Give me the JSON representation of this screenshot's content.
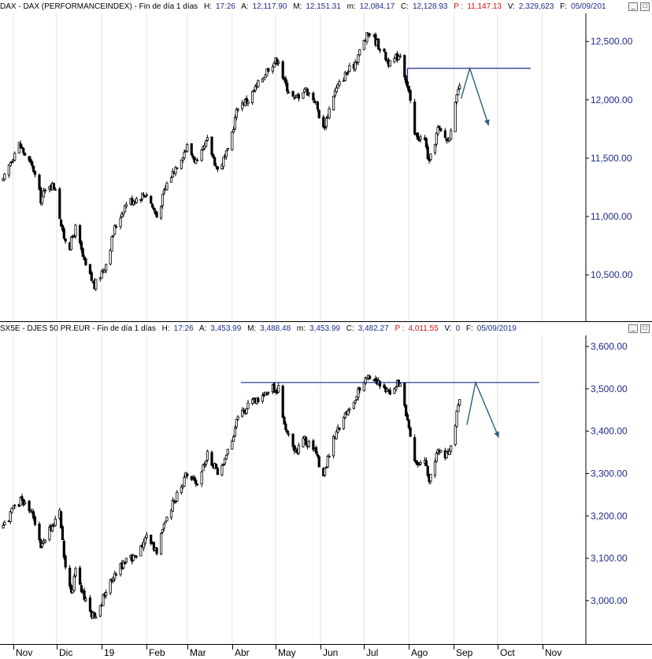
{
  "top_header": {
    "title": "DAX - DAX (PERFORMANCEINDEX) - Fin de día 1 días",
    "h_label": "H:",
    "h": "17:26",
    "a_label": "A:",
    "a": "12,117.90",
    "m_label": "M:",
    "m": "12,151.31",
    "mn_label": "m:",
    "mn": "12,084.17",
    "c_label": "C:",
    "c": "12,128.93",
    "p_label": "P :",
    "p": "11,147.13",
    "v_label": "V:",
    "v": "2,329,623",
    "f_label": "F:",
    "f": "05/09/201"
  },
  "bottom_header": {
    "title": "SX5E - DJES 50 PR.EUR - Fin de día 1 días",
    "h_label": "H:",
    "h": "17:26",
    "a_label": "A:",
    "a": "3,453.99",
    "m_label": "M:",
    "m": "3,488.48",
    "mn_label": "m:",
    "mn": "3,453.99",
    "c_label": "C:",
    "c": "3,482.27",
    "p_label": "P :",
    "p": "4,011.55",
    "v_label": "V:",
    "v": "0",
    "f_label": "F:",
    "f": "05/09/2019"
  },
  "buttons": {
    "minimize": "_",
    "maximize": "□"
  },
  "colors": {
    "axis_text": "#1f2a8a",
    "candles": "#000000",
    "lines": "#1f2a8a",
    "arrow": "#2b5f7a",
    "p_value": "#d01010"
  },
  "x_axis": [
    "Nov",
    "Dic",
    "19",
    "Feb",
    "Mar",
    "Abr",
    "May",
    "Jun",
    "Jul",
    "Ago",
    "Sep",
    "Oct",
    "Nov"
  ],
  "chart_data": [
    {
      "type": "candlestick",
      "name": "DAX - DAX (PERFORMANCEINDEX)",
      "y_ticks": [
        "12,500.00",
        "12,000.00",
        "11,500.00",
        "11,000.00",
        "10,500.00"
      ],
      "y_tick_values": [
        12500,
        12000,
        11500,
        11000,
        10500
      ],
      "ylim": [
        10130,
        12700
      ],
      "x_range": [
        "2018-10-25",
        "2019-11-30"
      ],
      "anchors": [
        [
          "2018-10-25",
          11300
        ],
        [
          "2018-10-31",
          11500
        ],
        [
          "2018-11-05",
          11620
        ],
        [
          "2018-11-15",
          11400
        ],
        [
          "2018-11-20",
          11150
        ],
        [
          "2018-11-26",
          11280
        ],
        [
          "2018-11-30",
          11250
        ],
        [
          "2018-12-05",
          10850
        ],
        [
          "2018-12-10",
          10750
        ],
        [
          "2018-12-14",
          10900
        ],
        [
          "2018-12-20",
          10600
        ],
        [
          "2018-12-27",
          10400
        ],
        [
          "2019-01-04",
          10600
        ],
        [
          "2019-01-10",
          10900
        ],
        [
          "2019-01-18",
          11120
        ],
        [
          "2019-01-24",
          11150
        ],
        [
          "2019-02-01",
          11200
        ],
        [
          "2019-02-08",
          11000
        ],
        [
          "2019-02-15",
          11280
        ],
        [
          "2019-02-22",
          11450
        ],
        [
          "2019-03-01",
          11600
        ],
        [
          "2019-03-08",
          11450
        ],
        [
          "2019-03-15",
          11650
        ],
        [
          "2019-03-22",
          11400
        ],
        [
          "2019-03-29",
          11550
        ],
        [
          "2019-04-05",
          11950
        ],
        [
          "2019-04-12",
          12000
        ],
        [
          "2019-04-20",
          12150
        ],
        [
          "2019-04-27",
          12300
        ],
        [
          "2019-05-03",
          12350
        ],
        [
          "2019-05-07",
          12150
        ],
        [
          "2019-05-14",
          12000
        ],
        [
          "2019-05-21",
          12100
        ],
        [
          "2019-05-28",
          12000
        ],
        [
          "2019-06-03",
          11750
        ],
        [
          "2019-06-10",
          12050
        ],
        [
          "2019-06-17",
          12200
        ],
        [
          "2019-06-24",
          12300
        ],
        [
          "2019-07-01",
          12500
        ],
        [
          "2019-07-05",
          12580
        ],
        [
          "2019-07-12",
          12450
        ],
        [
          "2019-07-19",
          12300
        ],
        [
          "2019-07-26",
          12400
        ],
        [
          "2019-08-01",
          12050
        ],
        [
          "2019-08-05",
          11700
        ],
        [
          "2019-08-12",
          11650
        ],
        [
          "2019-08-15",
          11450
        ],
        [
          "2019-08-21",
          11750
        ],
        [
          "2019-08-28",
          11650
        ],
        [
          "2019-09-02",
          11950
        ],
        [
          "2019-09-05",
          12126
        ]
      ]
    },
    {
      "type": "candlestick",
      "name": "SX5E - DJES 50 PR.EUR",
      "y_ticks": [
        "3,600.00",
        "3,500.00",
        "3,400.00",
        "3,300.00",
        "3,200.00",
        "3,100.00",
        "3,000.00"
      ],
      "y_tick_values": [
        3600,
        3500,
        3400,
        3300,
        3200,
        3100,
        3000
      ],
      "ylim": [
        2905,
        3615
      ],
      "x_range": [
        "2018-10-25",
        "2019-11-30"
      ],
      "anchors": [
        [
          "2018-10-25",
          3170
        ],
        [
          "2018-10-31",
          3210
        ],
        [
          "2018-11-07",
          3240
        ],
        [
          "2018-11-15",
          3200
        ],
        [
          "2018-11-20",
          3120
        ],
        [
          "2018-11-28",
          3180
        ],
        [
          "2018-12-03",
          3210
        ],
        [
          "2018-12-07",
          3070
        ],
        [
          "2018-12-12",
          3020
        ],
        [
          "2018-12-14",
          3080
        ],
        [
          "2018-12-20",
          3000
        ],
        [
          "2018-12-27",
          2960
        ],
        [
          "2019-01-04",
          3020
        ],
        [
          "2019-01-10",
          3060
        ],
        [
          "2019-01-18",
          3100
        ],
        [
          "2019-01-24",
          3100
        ],
        [
          "2019-02-01",
          3150
        ],
        [
          "2019-02-08",
          3120
        ],
        [
          "2019-02-15",
          3200
        ],
        [
          "2019-02-22",
          3250
        ],
        [
          "2019-03-01",
          3300
        ],
        [
          "2019-03-08",
          3270
        ],
        [
          "2019-03-15",
          3350
        ],
        [
          "2019-03-22",
          3300
        ],
        [
          "2019-03-29",
          3350
        ],
        [
          "2019-04-05",
          3430
        ],
        [
          "2019-04-12",
          3460
        ],
        [
          "2019-04-20",
          3480
        ],
        [
          "2019-04-27",
          3500
        ],
        [
          "2019-05-03",
          3500
        ],
        [
          "2019-05-07",
          3420
        ],
        [
          "2019-05-14",
          3350
        ],
        [
          "2019-05-21",
          3380
        ],
        [
          "2019-05-28",
          3350
        ],
        [
          "2019-06-03",
          3300
        ],
        [
          "2019-06-10",
          3380
        ],
        [
          "2019-06-17",
          3430
        ],
        [
          "2019-06-24",
          3470
        ],
        [
          "2019-07-01",
          3520
        ],
        [
          "2019-07-05",
          3530
        ],
        [
          "2019-07-12",
          3510
        ],
        [
          "2019-07-19",
          3490
        ],
        [
          "2019-07-26",
          3520
        ],
        [
          "2019-08-01",
          3400
        ],
        [
          "2019-08-05",
          3320
        ],
        [
          "2019-08-12",
          3330
        ],
        [
          "2019-08-15",
          3290
        ],
        [
          "2019-08-21",
          3360
        ],
        [
          "2019-08-28",
          3340
        ],
        [
          "2019-09-02",
          3420
        ],
        [
          "2019-09-05",
          3482
        ]
      ]
    }
  ],
  "annotations": [
    {
      "pane": 0,
      "type": "hline",
      "date_from": "2019-07-31",
      "date_to": "2019-10-24",
      "value": 12270
    },
    {
      "pane": 0,
      "type": "arrow",
      "points": [
        [
          "2019-09-06",
          12010
        ],
        [
          "2019-09-12",
          12270
        ],
        [
          "2019-09-25",
          11780
        ]
      ]
    },
    {
      "pane": 1,
      "type": "hline",
      "date_from": "2019-04-07",
      "date_to": "2019-10-30",
      "value": 3515
    },
    {
      "pane": 1,
      "type": "arrow",
      "points": [
        [
          "2019-09-10",
          3415
        ],
        [
          "2019-09-16",
          3515
        ],
        [
          "2019-10-02",
          3385
        ]
      ]
    }
  ]
}
